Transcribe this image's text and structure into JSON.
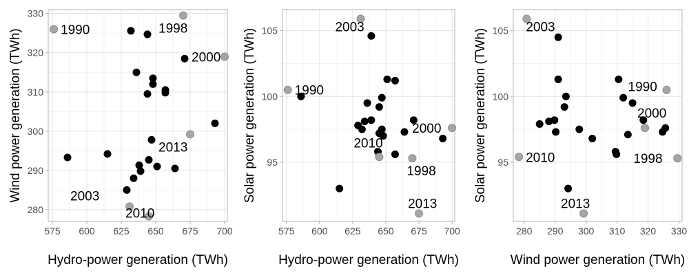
{
  "chart_data": [
    {
      "type": "scatter",
      "xlabel": "Hydro-power generation (TWh)",
      "ylabel": "Wind power generation (TWh)",
      "xlim": [
        572,
        702
      ],
      "ylim": [
        277,
        331
      ],
      "xticks": [
        575,
        600,
        625,
        650,
        675,
        700
      ],
      "yticks": [
        280,
        290,
        300,
        310,
        320,
        330
      ],
      "grid": true,
      "legend": "none",
      "colors": {
        "regular": "#000000",
        "highlight": "#a6a6a6"
      },
      "points": [
        {
          "x": 576,
          "y": 326,
          "highlight": true,
          "label": "1990"
        },
        {
          "x": 670,
          "y": 329.5,
          "highlight": true,
          "label": "1998"
        },
        {
          "x": 700,
          "y": 319,
          "highlight": true,
          "label": "2000"
        },
        {
          "x": 631,
          "y": 280.8,
          "highlight": true,
          "label": "2003"
        },
        {
          "x": 645,
          "y": 278.3,
          "highlight": true,
          "label": "2010"
        },
        {
          "x": 675,
          "y": 299.2,
          "highlight": true,
          "label": "2013"
        },
        {
          "x": 586,
          "y": 293.3
        },
        {
          "x": 615,
          "y": 294.2
        },
        {
          "x": 629,
          "y": 285
        },
        {
          "x": 632,
          "y": 325.6
        },
        {
          "x": 634,
          "y": 288
        },
        {
          "x": 636,
          "y": 315
        },
        {
          "x": 638,
          "y": 291.3
        },
        {
          "x": 639,
          "y": 289.8
        },
        {
          "x": 644,
          "y": 324.7
        },
        {
          "x": 644,
          "y": 309.5
        },
        {
          "x": 645,
          "y": 292.7
        },
        {
          "x": 647,
          "y": 297.8
        },
        {
          "x": 648,
          "y": 312
        },
        {
          "x": 648,
          "y": 313.5
        },
        {
          "x": 651,
          "y": 291
        },
        {
          "x": 657,
          "y": 310.5
        },
        {
          "x": 657,
          "y": 309.8
        },
        {
          "x": 664,
          "y": 290.5
        },
        {
          "x": 671,
          "y": 318.5
        },
        {
          "x": 693,
          "y": 302
        }
      ]
    },
    {
      "type": "scatter",
      "xlabel": "Hydro-power generation (TWh)",
      "ylabel": "Solar power generation (TWh)",
      "xlim": [
        572,
        702
      ],
      "ylim": [
        90.5,
        106.6
      ],
      "xticks": [
        575,
        600,
        625,
        650,
        675,
        700
      ],
      "yticks": [
        95,
        100,
        105
      ],
      "grid": true,
      "legend": "none",
      "colors": {
        "regular": "#000000",
        "highlight": "#a6a6a6"
      },
      "points": [
        {
          "x": 576,
          "y": 100.5,
          "highlight": true,
          "label": "1990"
        },
        {
          "x": 670,
          "y": 95.3,
          "highlight": true,
          "label": "1998"
        },
        {
          "x": 700,
          "y": 97.6,
          "highlight": true,
          "label": "2000"
        },
        {
          "x": 631,
          "y": 105.9,
          "highlight": true,
          "label": "2003"
        },
        {
          "x": 645,
          "y": 95.4,
          "highlight": true,
          "label": "2010"
        },
        {
          "x": 675,
          "y": 91.1,
          "highlight": true,
          "label": "2013"
        },
        {
          "x": 586,
          "y": 100
        },
        {
          "x": 615,
          "y": 93
        },
        {
          "x": 629,
          "y": 97.8
        },
        {
          "x": 632,
          "y": 97.5
        },
        {
          "x": 634,
          "y": 98.1
        },
        {
          "x": 636,
          "y": 99.5
        },
        {
          "x": 639,
          "y": 104.6
        },
        {
          "x": 639,
          "y": 98.2
        },
        {
          "x": 644,
          "y": 95.8
        },
        {
          "x": 645,
          "y": 99.2
        },
        {
          "x": 645,
          "y": 97.2
        },
        {
          "x": 647,
          "y": 97.5
        },
        {
          "x": 647,
          "y": 99.9
        },
        {
          "x": 648,
          "y": 97
        },
        {
          "x": 651,
          "y": 101.3
        },
        {
          "x": 657,
          "y": 101.2
        },
        {
          "x": 657,
          "y": 95.6
        },
        {
          "x": 664,
          "y": 97.3
        },
        {
          "x": 671,
          "y": 98.2
        },
        {
          "x": 693,
          "y": 96.8
        }
      ]
    },
    {
      "type": "scatter",
      "xlabel": "Wind power generation (TWh)",
      "ylabel": "Solar power generation (TWh)",
      "xlim": [
        276.5,
        331
      ],
      "ylim": [
        90.5,
        106.6
      ],
      "xticks": [
        280,
        290,
        300,
        310,
        320,
        330
      ],
      "yticks": [
        95,
        100,
        105
      ],
      "grid": true,
      "legend": "none",
      "colors": {
        "regular": "#000000",
        "highlight": "#a6a6a6"
      },
      "points": [
        {
          "x": 326,
          "y": 100.5,
          "highlight": true,
          "label": "1990"
        },
        {
          "x": 329.5,
          "y": 95.3,
          "highlight": true,
          "label": "1998"
        },
        {
          "x": 319,
          "y": 97.6,
          "highlight": true,
          "label": "2000"
        },
        {
          "x": 280.8,
          "y": 105.9,
          "highlight": true,
          "label": "2003"
        },
        {
          "x": 278.3,
          "y": 95.4,
          "highlight": true,
          "label": "2010"
        },
        {
          "x": 299.2,
          "y": 91.1,
          "highlight": true,
          "label": "2013"
        },
        {
          "x": 285,
          "y": 97.9
        },
        {
          "x": 288,
          "y": 98.1
        },
        {
          "x": 289.8,
          "y": 98.2
        },
        {
          "x": 290.2,
          "y": 97.3
        },
        {
          "x": 291,
          "y": 104.5
        },
        {
          "x": 291,
          "y": 101.3
        },
        {
          "x": 293,
          "y": 99.2
        },
        {
          "x": 293.5,
          "y": 100
        },
        {
          "x": 294.2,
          "y": 93
        },
        {
          "x": 297.8,
          "y": 97.5
        },
        {
          "x": 302,
          "y": 96.8
        },
        {
          "x": 309.5,
          "y": 95.8
        },
        {
          "x": 309.8,
          "y": 95.6
        },
        {
          "x": 310.5,
          "y": 101.3
        },
        {
          "x": 312,
          "y": 99.9
        },
        {
          "x": 313.5,
          "y": 97.1
        },
        {
          "x": 315,
          "y": 99.5
        },
        {
          "x": 318.5,
          "y": 98.2
        },
        {
          "x": 324.7,
          "y": 97.3
        },
        {
          "x": 325.6,
          "y": 97.6
        }
      ]
    }
  ]
}
